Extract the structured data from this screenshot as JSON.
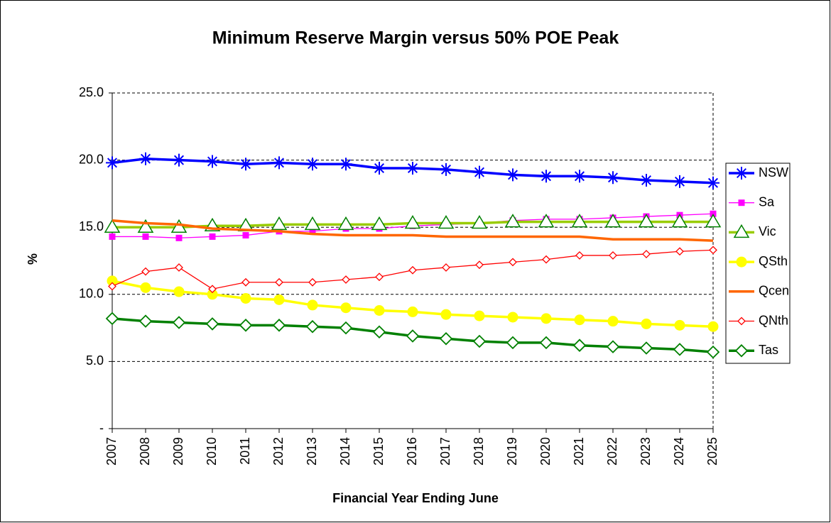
{
  "chart_data": {
    "type": "line",
    "title": "Minimum Reserve Margin versus 50% POE Peak",
    "x_label": "Financial Year Ending June",
    "y_label": "%",
    "categories": [
      "2007",
      "2008",
      "2009",
      "2010",
      "2011",
      "2012",
      "2013",
      "2014",
      "2015",
      "2016",
      "2017",
      "2018",
      "2019",
      "2020",
      "2021",
      "2022",
      "2023",
      "2024",
      "2025"
    ],
    "ylim": [
      0,
      25
    ],
    "yticks": [
      {
        "value": 0,
        "label": "-"
      },
      {
        "value": 5,
        "label": "5.0"
      },
      {
        "value": 10,
        "label": "10.0"
      },
      {
        "value": 15,
        "label": "15.0"
      },
      {
        "value": 20,
        "label": "20.0"
      },
      {
        "value": 25,
        "label": "25.0"
      }
    ],
    "grid": true,
    "legend": "right",
    "series": [
      {
        "name": "NSW",
        "color": "#0000ff",
        "marker": "asterisk",
        "values": [
          19.8,
          20.1,
          20.0,
          19.9,
          19.7,
          19.8,
          19.7,
          19.7,
          19.4,
          19.4,
          19.3,
          19.1,
          18.9,
          18.8,
          18.8,
          18.7,
          18.5,
          18.4,
          18.3
        ]
      },
      {
        "name": "Sa",
        "color": "#ff00ff",
        "marker": "square",
        "values": [
          14.3,
          14.3,
          14.2,
          14.3,
          14.4,
          14.7,
          14.7,
          14.9,
          14.9,
          15.1,
          15.2,
          15.3,
          15.5,
          15.6,
          15.6,
          15.7,
          15.8,
          15.9,
          16.0
        ]
      },
      {
        "name": "Vic",
        "color": "#99cc00",
        "marker": "triangle",
        "marker_color": "#008000",
        "values": [
          15.0,
          15.0,
          15.0,
          15.1,
          15.1,
          15.2,
          15.2,
          15.2,
          15.2,
          15.3,
          15.3,
          15.3,
          15.4,
          15.4,
          15.4,
          15.4,
          15.4,
          15.4,
          15.4
        ]
      },
      {
        "name": "QSth",
        "color": "#ffff00",
        "marker": "circle",
        "values": [
          11.0,
          10.5,
          10.2,
          10.0,
          9.7,
          9.6,
          9.2,
          9.0,
          8.8,
          8.7,
          8.5,
          8.4,
          8.3,
          8.2,
          8.1,
          8.0,
          7.8,
          7.7,
          7.6
        ]
      },
      {
        "name": "Qcen",
        "color": "#ff6600",
        "marker": "none",
        "values": [
          15.5,
          15.3,
          15.2,
          14.9,
          14.8,
          14.7,
          14.5,
          14.4,
          14.4,
          14.4,
          14.3,
          14.3,
          14.3,
          14.3,
          14.3,
          14.1,
          14.1,
          14.1,
          14.0
        ]
      },
      {
        "name": "QNth",
        "color": "#ff0000",
        "marker": "small-diamond",
        "values": [
          10.6,
          11.7,
          12.0,
          10.4,
          10.9,
          10.9,
          10.9,
          11.1,
          11.3,
          11.8,
          12.0,
          12.2,
          12.4,
          12.6,
          12.9,
          12.9,
          13.0,
          13.2,
          13.3
        ]
      },
      {
        "name": "Tas",
        "color": "#008000",
        "marker": "diamond",
        "values": [
          8.2,
          8.0,
          7.9,
          7.8,
          7.7,
          7.7,
          7.6,
          7.5,
          7.2,
          6.9,
          6.7,
          6.5,
          6.4,
          6.4,
          6.2,
          6.1,
          6.0,
          5.9,
          5.7
        ]
      }
    ]
  }
}
